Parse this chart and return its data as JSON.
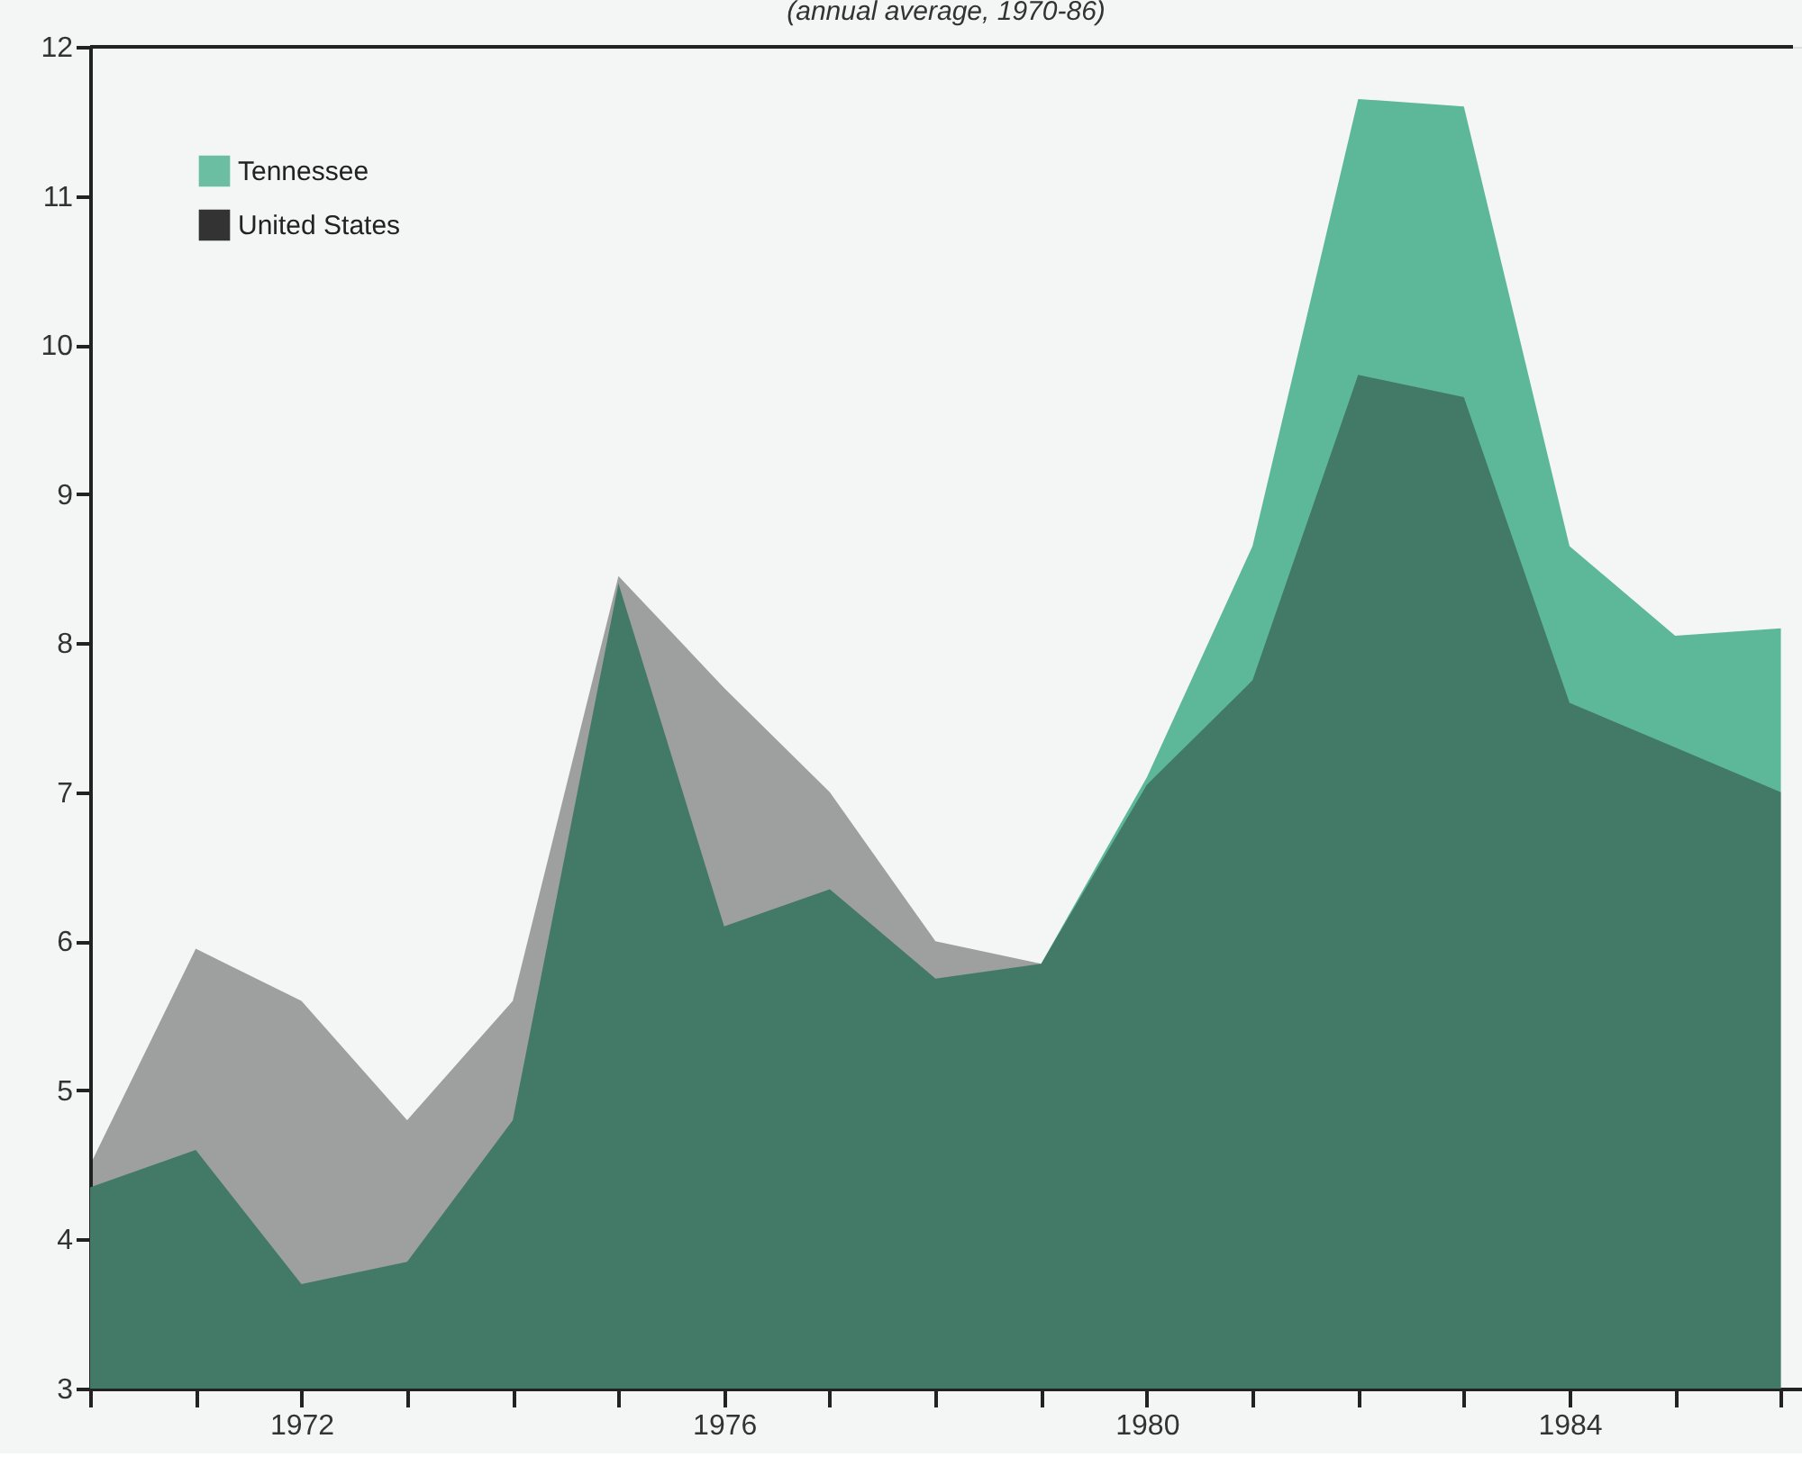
{
  "chart_data": {
    "type": "area",
    "title": "(annual average, 1970-86)",
    "x": [
      1970,
      1971,
      1972,
      1973,
      1974,
      1975,
      1976,
      1977,
      1978,
      1979,
      1980,
      1981,
      1982,
      1983,
      1984,
      1985,
      1986
    ],
    "series": [
      {
        "name": "Tennessee",
        "color": "#5cb898",
        "values": [
          4.35,
          4.6,
          3.7,
          3.85,
          4.8,
          8.4,
          6.1,
          6.35,
          5.75,
          5.85,
          7.1,
          8.65,
          11.65,
          11.6,
          8.65,
          8.05,
          8.1
        ]
      },
      {
        "name": "United States",
        "color": "#1e1e1e",
        "values": [
          4.5,
          5.95,
          5.6,
          4.8,
          5.6,
          8.45,
          7.7,
          7.0,
          6.0,
          5.85,
          7.05,
          7.75,
          9.8,
          9.65,
          7.6,
          7.3,
          7.0
        ]
      }
    ],
    "xlim": [
      1970,
      1986.2
    ],
    "xticks": [
      {
        "value": 1970,
        "label": null
      },
      {
        "value": 1971,
        "label": null
      },
      1972,
      {
        "value": 1973,
        "label": null
      },
      {
        "value": 1974,
        "label": null
      },
      {
        "value": 1975,
        "label": null
      },
      1976,
      {
        "value": 1977,
        "label": null
      },
      {
        "value": 1978,
        "label": null
      },
      {
        "value": 1979,
        "label": null
      },
      1980,
      {
        "value": 1981,
        "label": null
      },
      {
        "value": 1982,
        "label": null
      },
      {
        "value": 1983,
        "label": null
      },
      1984,
      {
        "value": 1985,
        "label": null
      },
      {
        "value": 1986,
        "label": null
      }
    ],
    "ylim": [
      3,
      12
    ],
    "yticks": [
      3,
      4,
      5,
      6,
      7,
      8,
      9,
      10,
      11,
      12
    ],
    "grid": false,
    "legend": "top left"
  }
}
